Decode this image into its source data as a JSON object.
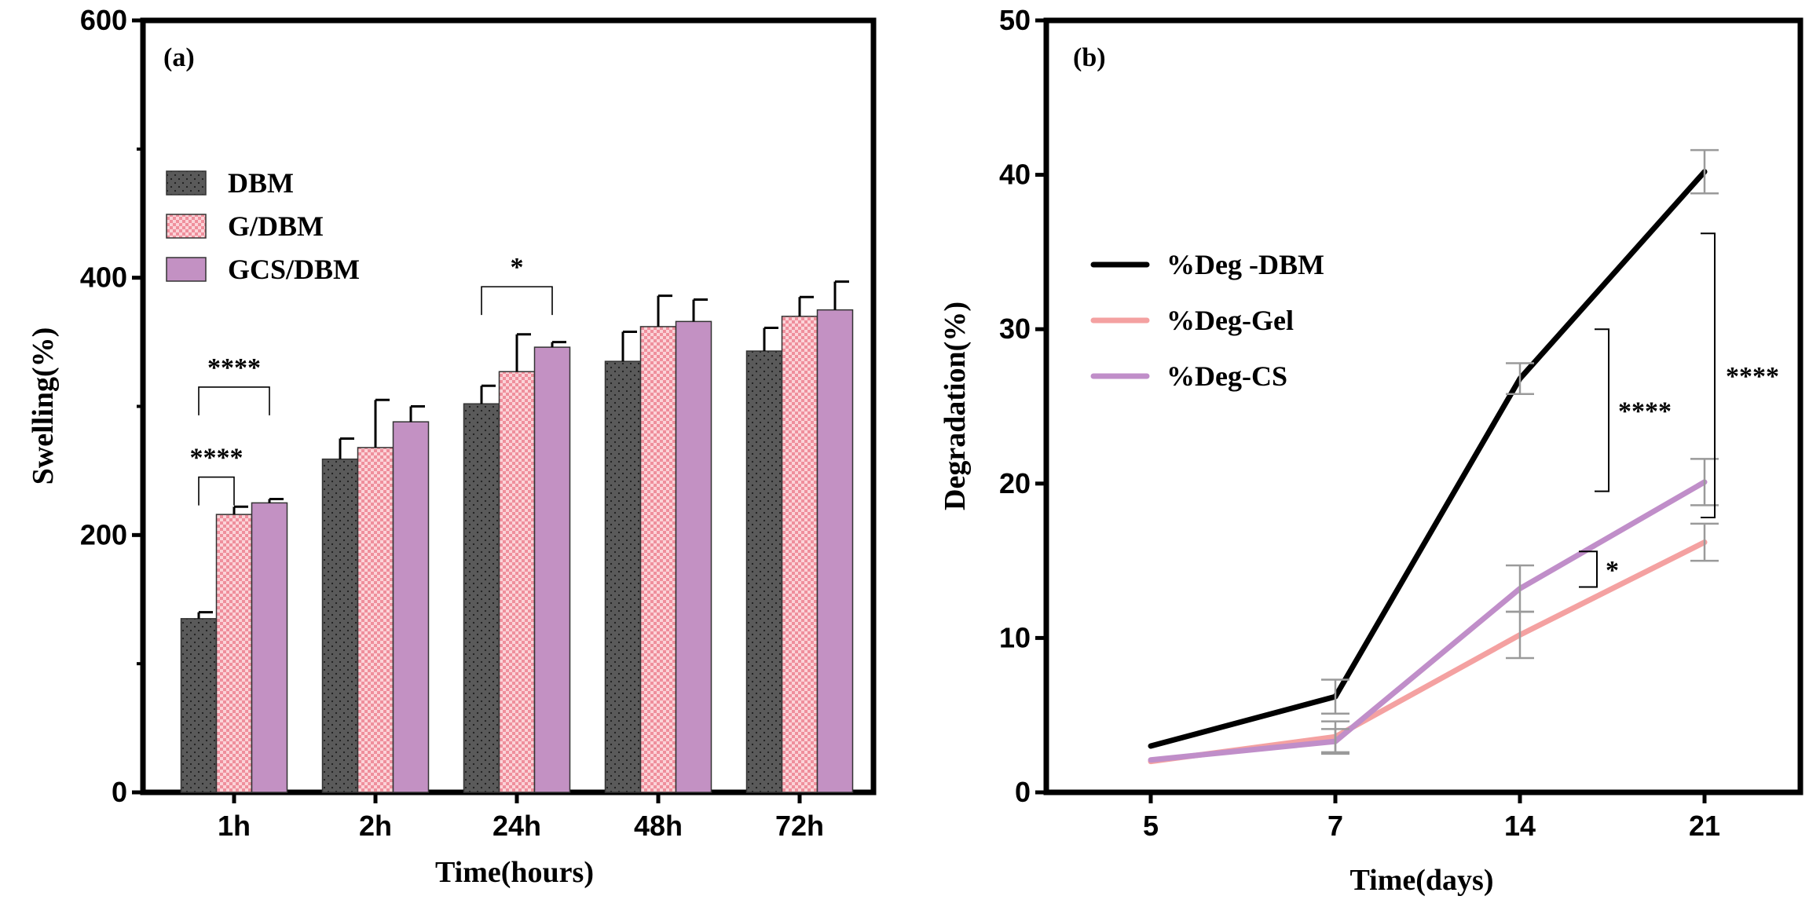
{
  "chart_data": [
    {
      "type": "bar",
      "panel_label": "(a)",
      "categories": [
        "1h",
        "2h",
        "24h",
        "48h",
        "72h"
      ],
      "series": [
        {
          "name": "DBM",
          "color": "#5a5a5a",
          "pattern": "dots",
          "values": [
            135,
            259,
            302,
            335,
            343
          ],
          "errors": [
            5,
            16,
            14,
            23,
            18
          ]
        },
        {
          "name": "G/DBM",
          "color": "#f4a7b0",
          "pattern": "checker",
          "values": [
            216,
            268,
            327,
            362,
            370
          ],
          "errors": [
            6,
            37,
            29,
            24,
            15
          ]
        },
        {
          "name": "GCS/DBM",
          "color": "#c391c3",
          "pattern": "solid",
          "values": [
            225,
            288,
            346,
            366,
            375
          ],
          "errors": [
            3,
            12,
            4,
            17,
            22
          ]
        }
      ],
      "xlabel": "Time(hours)",
      "ylabel": "Swelling(%)",
      "ylim": [
        0,
        600
      ],
      "yticks": [
        0,
        200,
        400,
        600
      ],
      "legend": "upper-left",
      "significance": [
        {
          "text": "****",
          "category": 0,
          "from_series": 0,
          "to_series": 1,
          "at": 245
        },
        {
          "text": "****",
          "category": 0,
          "from_series": 0,
          "to_series": 2,
          "at": 315
        },
        {
          "text": "*",
          "category": 2,
          "from_series": 0,
          "to_series": 2,
          "at": 393
        }
      ]
    },
    {
      "type": "line",
      "panel_label": "(b)",
      "x": [
        "5",
        "7",
        "14",
        "21"
      ],
      "series": [
        {
          "name": "%Deg -DBM",
          "color": "#000000",
          "values": [
            3.0,
            6.2,
            26.8,
            40.2
          ],
          "errors": [
            0,
            1.1,
            1.0,
            1.4
          ]
        },
        {
          "name": "%Deg-Gel",
          "color": "#f4a1a1",
          "values": [
            2.0,
            3.6,
            10.2,
            16.2
          ],
          "errors": [
            0,
            1.0,
            1.5,
            1.2
          ]
        },
        {
          "name": "%Deg-CS",
          "color": "#c08ec9",
          "values": [
            2.1,
            3.3,
            13.2,
            20.1
          ],
          "errors": [
            0,
            0.8,
            1.5,
            1.5
          ]
        }
      ],
      "xlabel": "Time(days)",
      "ylabel": "Degradation(%)",
      "ylim": [
        0,
        50
      ],
      "yticks": [
        0,
        10,
        20,
        30,
        40,
        50
      ],
      "legend": "upper-left",
      "significance": [
        {
          "text": "****",
          "y_from": 19.5,
          "y_to": 30.0,
          "side": "between 14 and 21"
        },
        {
          "text": "****",
          "y_from": 17.8,
          "y_to": 36.2,
          "side": "right of 21"
        },
        {
          "text": "*",
          "y_from": 13.3,
          "y_to": 15.6,
          "side": "between 14 and 21"
        }
      ]
    }
  ]
}
